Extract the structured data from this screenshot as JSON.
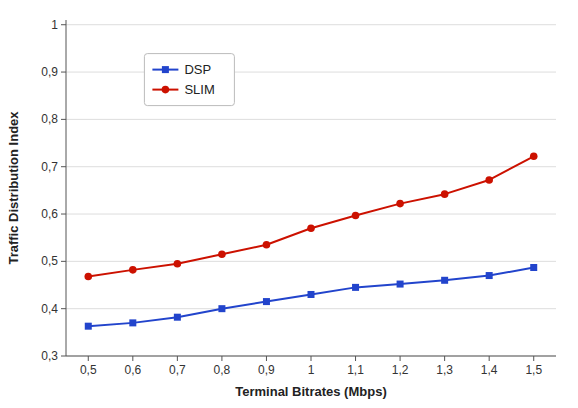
{
  "chart_data": {
    "type": "line",
    "xlabel": "Terminal Bitrates (Mbps)",
    "ylabel": "Traffic Distribution Index",
    "x": [
      0.5,
      0.6,
      0.7,
      0.8,
      0.9,
      1.0,
      1.1,
      1.2,
      1.3,
      1.4,
      1.5
    ],
    "series": [
      {
        "name": "DSP",
        "color": "#2244cc",
        "marker": "square",
        "values": [
          0.363,
          0.37,
          0.382,
          0.4,
          0.415,
          0.43,
          0.445,
          0.452,
          0.46,
          0.47,
          0.487
        ]
      },
      {
        "name": "SLIM",
        "color": "#cc1100",
        "marker": "circle",
        "values": [
          0.468,
          0.482,
          0.495,
          0.515,
          0.535,
          0.57,
          0.597,
          0.622,
          0.642,
          0.672,
          0.722
        ]
      }
    ],
    "xlim": [
      0.45,
      1.55
    ],
    "ylim": [
      0.3,
      1.01
    ],
    "xticks": [
      {
        "value": 0.5,
        "label": "0,5"
      },
      {
        "value": 0.6,
        "label": "0,6"
      },
      {
        "value": 0.7,
        "label": "0,7"
      },
      {
        "value": 0.8,
        "label": "0,8"
      },
      {
        "value": 0.9,
        "label": "0,9"
      },
      1,
      {
        "value": 1.1,
        "label": "1,1"
      },
      {
        "value": 1.2,
        "label": "1,2"
      },
      {
        "value": 1.3,
        "label": "1,3"
      },
      {
        "value": 1.4,
        "label": "1,4"
      },
      {
        "value": 1.5,
        "label": "1,5"
      }
    ],
    "yticks": [
      {
        "value": 0.3,
        "label": "0,3"
      },
      {
        "value": 0.4,
        "label": "0,4"
      },
      {
        "value": 0.5,
        "label": "0,5"
      },
      {
        "value": 0.6,
        "label": "0,6"
      },
      {
        "value": 0.7,
        "label": "0,7"
      },
      {
        "value": 0.8,
        "label": "0,8"
      },
      {
        "value": 0.9,
        "label": "0,9"
      },
      1
    ],
    "grid": true,
    "legend": "upper left"
  }
}
